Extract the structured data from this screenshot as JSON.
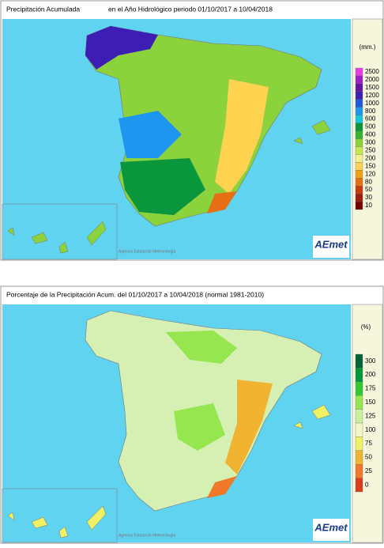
{
  "maps": [
    {
      "title_left": "Precipitación Acumulada",
      "title_right": "en el Año Hidrológico  periodo 01/10/2017 a 10/04/2018",
      "unit": "(mm.)",
      "legend": [
        {
          "label": "2500",
          "color": "#e83ce8"
        },
        {
          "label": "2000",
          "color": "#a01ec8"
        },
        {
          "label": "1500",
          "color": "#6414a0"
        },
        {
          "label": "1200",
          "color": "#3c1eb4"
        },
        {
          "label": "1000",
          "color": "#1e5adc"
        },
        {
          "label": "800",
          "color": "#1e96f0"
        },
        {
          "label": "600",
          "color": "#14c8dc"
        },
        {
          "label": "500",
          "color": "#0a963c"
        },
        {
          "label": "400",
          "color": "#32b432"
        },
        {
          "label": "300",
          "color": "#8cd23c"
        },
        {
          "label": "250",
          "color": "#c8e650"
        },
        {
          "label": "200",
          "color": "#f0f08c"
        },
        {
          "label": "150",
          "color": "#ffd250"
        },
        {
          "label": "120",
          "color": "#f0a014"
        },
        {
          "label": "80",
          "color": "#e66e14"
        },
        {
          "label": "50",
          "color": "#c83c0a"
        },
        {
          "label": "30",
          "color": "#a01e0a"
        },
        {
          "label": "10",
          "color": "#780000"
        }
      ],
      "credit": "Agencia Estatal de Meteorología",
      "logo": "AEmet"
    },
    {
      "title_left": "Porcentaje de la Precipitación Acum. del 01/10/2017 a  10/04/2018  (normal 1981-2010)",
      "unit": "(%)",
      "legend": [
        {
          "label": "300",
          "color": "#006432"
        },
        {
          "label": "200",
          "color": "#00963c"
        },
        {
          "label": "175",
          "color": "#32c832"
        },
        {
          "label": "150",
          "color": "#96e650"
        },
        {
          "label": "125",
          "color": "#c8f09b"
        },
        {
          "label": "100",
          "color": "#f0f5c8"
        },
        {
          "label": "75",
          "color": "#f0f064"
        },
        {
          "label": "50",
          "color": "#f0b432"
        },
        {
          "label": "25",
          "color": "#f07828"
        },
        {
          "label": "0",
          "color": "#dc3c1e"
        }
      ],
      "credit": "Agencia Estatal de Meteorología",
      "logo": "AEmet"
    }
  ]
}
